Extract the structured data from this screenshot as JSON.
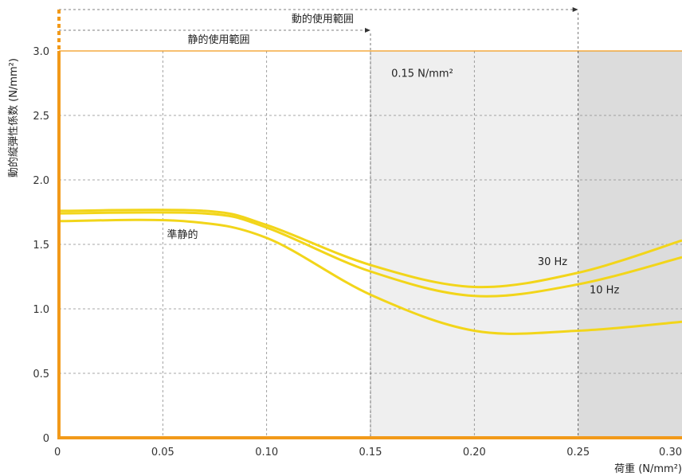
{
  "chart_data": {
    "type": "line",
    "title": "",
    "xlabel": "荷重 (N/mm²)",
    "ylabel": "動的縦弾性係数 (N/mm²)",
    "xlim": [
      0,
      0.3
    ],
    "ylim": [
      0,
      3.0
    ],
    "x_ticks": [
      "0",
      "0.05",
      "0.10",
      "0.15",
      "0.20",
      "0.25",
      "0.30"
    ],
    "y_ticks": [
      "0",
      "0.5",
      "1.0",
      "1.5",
      "2.0",
      "2.5",
      "3.0"
    ],
    "grid": true,
    "series": [
      {
        "name": "30 Hz",
        "x": [
          0,
          0.07,
          0.1,
          0.15,
          0.2,
          0.25,
          0.3
        ],
        "y": [
          1.76,
          1.76,
          1.65,
          1.34,
          1.17,
          1.28,
          1.53
        ]
      },
      {
        "name": "10 Hz",
        "x": [
          0,
          0.07,
          0.1,
          0.15,
          0.2,
          0.25,
          0.3
        ],
        "y": [
          1.74,
          1.74,
          1.63,
          1.29,
          1.1,
          1.19,
          1.4
        ]
      },
      {
        "name": "準静的",
        "x": [
          0,
          0.06,
          0.1,
          0.15,
          0.2,
          0.25,
          0.3
        ],
        "y": [
          1.68,
          1.68,
          1.55,
          1.11,
          0.83,
          0.83,
          0.9
        ]
      }
    ],
    "shaded_regions": [
      {
        "from": 0.15,
        "to": 0.25,
        "color": "#efefef"
      },
      {
        "from": 0.25,
        "to": 0.3,
        "color": "#dcdcdc"
      }
    ],
    "annotations": [
      {
        "text": "0.15 N/mm²",
        "x": 0.16,
        "y": 2.8
      },
      {
        "text": "30 Hz",
        "x": 0.2305,
        "y": 1.34
      },
      {
        "text": "10 Hz",
        "x": 0.2555,
        "y": 1.12
      },
      {
        "text": "準静的",
        "x": 0.052,
        "y": 1.55
      }
    ],
    "ranges": [
      {
        "label": "動的使用範囲",
        "from": 0,
        "to": 0.25
      },
      {
        "label": "静的使用範囲",
        "from": 0,
        "to": 0.15
      }
    ],
    "colors": {
      "curve": "#f2d51a",
      "axis": "#f29a1a"
    }
  }
}
